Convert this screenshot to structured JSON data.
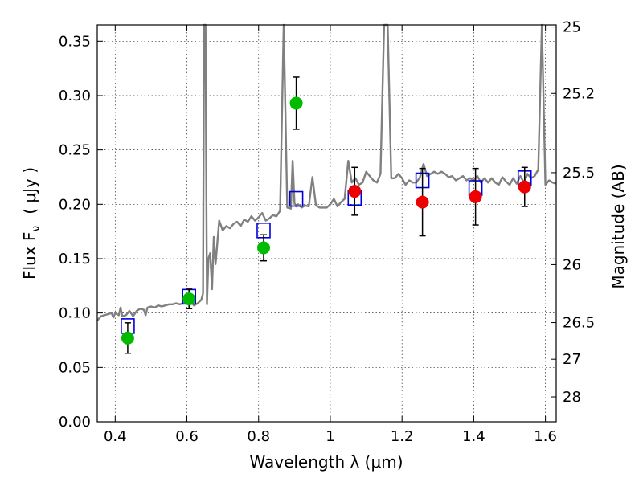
{
  "chart_data": {
    "type": "scatter",
    "title": "",
    "xlabel": "Wavelength  λ (μm)",
    "ylabel": "Flux  F",
    "ylabel_sub": "ν",
    "ylabel_unit": "( μJy )",
    "y2label": "Magnitude (AB)",
    "xlim": [
      0.35,
      1.63
    ],
    "ylim": [
      0.0,
      0.365
    ],
    "grid": true,
    "x_ticks": [
      0.4,
      0.6,
      0.8,
      1.0,
      1.2,
      1.4,
      1.6
    ],
    "x_tick_labels": [
      "0.4",
      "0.6",
      "0.8",
      "1",
      "1.2",
      "1.4",
      "1.6"
    ],
    "y_ticks": [
      0.0,
      0.05,
      0.1,
      0.15,
      0.2,
      0.25,
      0.3,
      0.35
    ],
    "y_tick_labels": [
      "0.00",
      "0.05",
      "0.10",
      "0.15",
      "0.20",
      "0.25",
      "0.30",
      "0.35"
    ],
    "y2_ticks": [
      {
        "flux": 0.3631,
        "label": "25"
      },
      {
        "flux": 0.302,
        "label": "25.2"
      },
      {
        "flux": 0.2291,
        "label": "25.5"
      },
      {
        "flux": 0.1445,
        "label": "26"
      },
      {
        "flux": 0.0912,
        "label": "26.5"
      },
      {
        "flux": 0.0575,
        "label": "27"
      },
      {
        "flux": 0.0229,
        "label": "28"
      }
    ],
    "colors": {
      "model": "#808080",
      "green": "#00bb00",
      "red": "#ee0000",
      "square": "#0000dd",
      "errorbar": "#000000"
    },
    "series": [
      {
        "marker": "square",
        "x": [
          0.435,
          0.606,
          0.814,
          0.905,
          1.068,
          1.257,
          1.405,
          1.542
        ],
        "y": [
          0.088,
          0.115,
          0.176,
          0.205,
          0.206,
          0.222,
          0.215,
          0.224
        ]
      },
      {
        "marker": "circle",
        "color": "green",
        "x": [
          0.435,
          0.606,
          0.814,
          0.905
        ],
        "y": [
          0.077,
          0.113,
          0.16,
          0.293
        ],
        "err": [
          0.014,
          0.009,
          0.012,
          0.024
        ]
      },
      {
        "marker": "circle",
        "color": "red",
        "x": [
          1.068,
          1.257,
          1.405,
          1.542
        ],
        "y": [
          0.212,
          0.202,
          0.207,
          0.216
        ],
        "err": [
          0.022,
          0.031,
          0.026,
          0.018
        ]
      },
      {
        "marker": "line",
        "color": "model",
        "x": [
          0.35,
          0.36,
          0.37,
          0.38,
          0.39,
          0.395,
          0.4,
          0.41,
          0.415,
          0.42,
          0.43,
          0.44,
          0.45,
          0.46,
          0.47,
          0.48,
          0.485,
          0.49,
          0.5,
          0.51,
          0.52,
          0.53,
          0.54,
          0.55,
          0.56,
          0.57,
          0.58,
          0.59,
          0.6,
          0.61,
          0.62,
          0.63,
          0.64,
          0.645,
          0.648,
          0.652,
          0.656,
          0.66,
          0.665,
          0.67,
          0.675,
          0.68,
          0.69,
          0.7,
          0.71,
          0.72,
          0.73,
          0.74,
          0.75,
          0.76,
          0.77,
          0.78,
          0.79,
          0.8,
          0.81,
          0.82,
          0.83,
          0.84,
          0.85,
          0.86,
          0.87,
          0.88,
          0.89,
          0.895,
          0.9,
          0.905,
          0.91,
          0.92,
          0.93,
          0.94,
          0.95,
          0.96,
          0.97,
          0.98,
          0.99,
          1.0,
          1.01,
          1.02,
          1.03,
          1.04,
          1.05,
          1.06,
          1.07,
          1.08,
          1.09,
          1.1,
          1.11,
          1.12,
          1.13,
          1.14,
          1.15,
          1.16,
          1.17,
          1.18,
          1.19,
          1.2,
          1.21,
          1.22,
          1.23,
          1.24,
          1.25,
          1.26,
          1.27,
          1.28,
          1.29,
          1.3,
          1.31,
          1.32,
          1.33,
          1.34,
          1.35,
          1.36,
          1.37,
          1.38,
          1.39,
          1.4,
          1.41,
          1.42,
          1.43,
          1.44,
          1.45,
          1.46,
          1.47,
          1.48,
          1.49,
          1.5,
          1.51,
          1.52,
          1.53,
          1.54,
          1.55,
          1.56,
          1.57,
          1.58,
          1.59,
          1.6,
          1.61,
          1.62,
          1.63
        ],
        "y": [
          0.093,
          0.097,
          0.098,
          0.099,
          0.1,
          0.096,
          0.1,
          0.098,
          0.105,
          0.097,
          0.098,
          0.102,
          0.097,
          0.102,
          0.104,
          0.103,
          0.098,
          0.105,
          0.106,
          0.105,
          0.107,
          0.106,
          0.107,
          0.108,
          0.108,
          0.109,
          0.108,
          0.109,
          0.11,
          0.111,
          0.107,
          0.109,
          0.112,
          0.118,
          0.365,
          0.365,
          0.108,
          0.15,
          0.155,
          0.122,
          0.17,
          0.145,
          0.185,
          0.176,
          0.18,
          0.178,
          0.182,
          0.184,
          0.18,
          0.186,
          0.184,
          0.189,
          0.185,
          0.188,
          0.192,
          0.185,
          0.187,
          0.19,
          0.189,
          0.194,
          0.365,
          0.197,
          0.196,
          0.24,
          0.201,
          0.198,
          0.2,
          0.197,
          0.199,
          0.198,
          0.225,
          0.199,
          0.197,
          0.197,
          0.197,
          0.2,
          0.205,
          0.198,
          0.202,
          0.205,
          0.24,
          0.22,
          0.224,
          0.218,
          0.22,
          0.23,
          0.226,
          0.222,
          0.22,
          0.228,
          0.365,
          0.365,
          0.224,
          0.224,
          0.228,
          0.224,
          0.218,
          0.222,
          0.22,
          0.22,
          0.225,
          0.237,
          0.226,
          0.228,
          0.23,
          0.228,
          0.23,
          0.228,
          0.225,
          0.226,
          0.222,
          0.224,
          0.226,
          0.222,
          0.224,
          0.222,
          0.226,
          0.22,
          0.224,
          0.22,
          0.224,
          0.22,
          0.218,
          0.225,
          0.221,
          0.218,
          0.224,
          0.219,
          0.226,
          0.22,
          0.228,
          0.224,
          0.226,
          0.232,
          0.365,
          0.218,
          0.222,
          0.22,
          0.219
        ]
      }
    ]
  }
}
